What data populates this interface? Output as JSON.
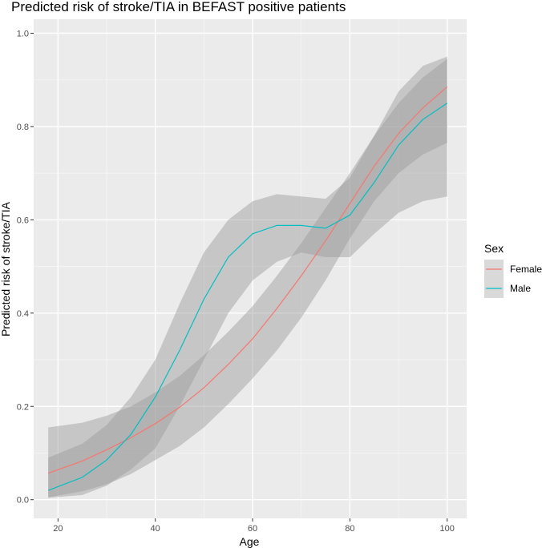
{
  "chart_data": {
    "type": "line",
    "title": "Predicted risk of stroke/TIA in BEFAST positive patients",
    "xlabel": "Age",
    "ylabel": "Predicted risk of stroke/TIA",
    "xlim": [
      15,
      104
    ],
    "ylim": [
      -0.04,
      1.03
    ],
    "x_ticks": [
      20,
      40,
      60,
      80,
      100
    ],
    "y_ticks": [
      0.0,
      0.2,
      0.4,
      0.6,
      0.8,
      1.0
    ],
    "y_tick_labels": [
      "0.0",
      "0.2",
      "0.4",
      "0.6",
      "0.8",
      "1.0"
    ],
    "grid": true,
    "legend": {
      "title": "Sex",
      "placement": "right"
    },
    "series": [
      {
        "name": "Female",
        "color": "#F8766D",
        "x": [
          18,
          25,
          30,
          35,
          40,
          45,
          50,
          55,
          60,
          65,
          70,
          75,
          80,
          85,
          90,
          95,
          100
        ],
        "y": [
          0.057,
          0.083,
          0.107,
          0.133,
          0.163,
          0.198,
          0.24,
          0.29,
          0.345,
          0.41,
          0.48,
          0.555,
          0.635,
          0.715,
          0.785,
          0.84,
          0.885
        ],
        "lower": [
          0.005,
          0.018,
          0.033,
          0.055,
          0.085,
          0.115,
          0.155,
          0.205,
          0.26,
          0.32,
          0.39,
          0.47,
          0.56,
          0.64,
          0.7,
          0.74,
          0.765
        ],
        "upper": [
          0.155,
          0.165,
          0.18,
          0.2,
          0.23,
          0.265,
          0.31,
          0.36,
          0.415,
          0.48,
          0.55,
          0.625,
          0.7,
          0.78,
          0.85,
          0.905,
          0.945
        ]
      },
      {
        "name": "Male",
        "color": "#00BFC4",
        "x": [
          18,
          25,
          30,
          35,
          40,
          45,
          50,
          55,
          60,
          65,
          70,
          75,
          80,
          85,
          90,
          95,
          100
        ],
        "y": [
          0.02,
          0.048,
          0.085,
          0.14,
          0.22,
          0.32,
          0.43,
          0.52,
          0.57,
          0.588,
          0.588,
          0.582,
          0.61,
          0.68,
          0.76,
          0.815,
          0.85
        ],
        "lower": [
          0.004,
          0.01,
          0.03,
          0.065,
          0.11,
          0.2,
          0.3,
          0.4,
          0.47,
          0.51,
          0.53,
          0.52,
          0.52,
          0.57,
          0.615,
          0.64,
          0.65
        ],
        "upper": [
          0.09,
          0.12,
          0.16,
          0.22,
          0.3,
          0.42,
          0.53,
          0.6,
          0.64,
          0.655,
          0.65,
          0.645,
          0.69,
          0.78,
          0.875,
          0.93,
          0.95
        ]
      }
    ]
  }
}
